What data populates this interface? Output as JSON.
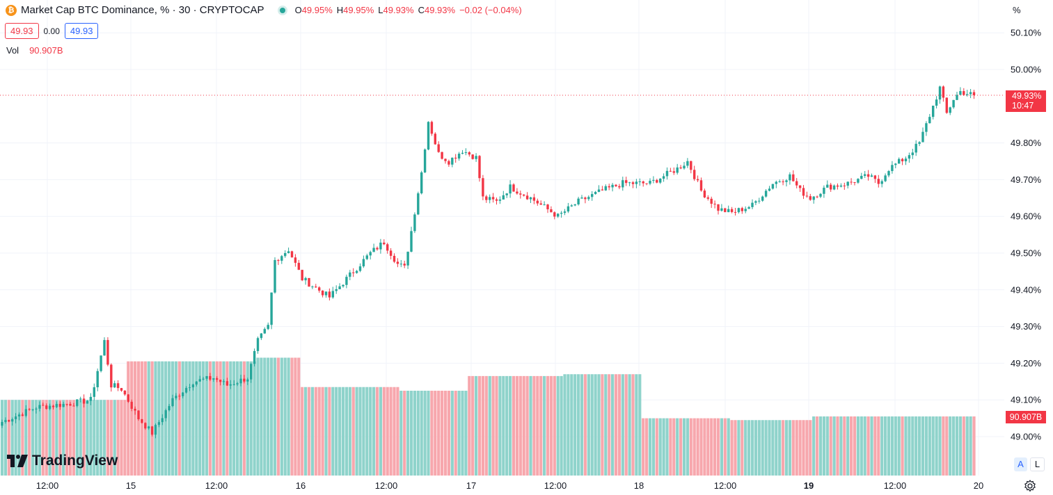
{
  "legend": {
    "icon": "bitcoin-icon",
    "title": "Market Cap BTC Dominance, % · 30 · CRYPTOCAP",
    "o_label": "O",
    "o_value": "49.95%",
    "h_label": "H",
    "h_value": "49.95%",
    "l_label": "L",
    "l_value": "49.93%",
    "c_label": "C",
    "c_value": "49.93%",
    "change": "−0.02 (−0.04%)"
  },
  "price_boxes": {
    "bid": "49.93",
    "spread": "0.00",
    "ask": "49.93"
  },
  "volume": {
    "label": "Vol",
    "value": "90.907B"
  },
  "scale_unit": "%",
  "last_price": {
    "value": "49.93%",
    "countdown": "10:47"
  },
  "volume_tag": "90.907B",
  "branding": {
    "logo_text": "TradingView"
  },
  "scale_buttons": {
    "auto": "A",
    "log": "L"
  },
  "colors": {
    "up": "#26a69a",
    "down": "#f23645",
    "up_vol": "#8fd3cb",
    "down_vol": "#f7a7ad",
    "grid": "#f0f3fa"
  },
  "chart_data": {
    "type": "candlestick",
    "title": "Market Cap BTC Dominance, % · 30 · CRYPTOCAP",
    "interval": "30",
    "ylim": [
      48.97,
      50.17
    ],
    "y_ticks": [
      "50.10%",
      "50.00%",
      "49.80%",
      "49.70%",
      "49.60%",
      "49.50%",
      "49.40%",
      "49.30%",
      "49.20%",
      "49.10%",
      "49.00%"
    ],
    "x_ticks": [
      "12:00",
      "15",
      "12:00",
      "16",
      "12:00",
      "17",
      "12:00",
      "18",
      "12:00",
      "19",
      "12:00",
      "20"
    ],
    "series_keypoints": [
      [
        0,
        49.04
      ],
      [
        10,
        49.08
      ],
      [
        20,
        49.09
      ],
      [
        26,
        49.1
      ],
      [
        30,
        49.26
      ],
      [
        32,
        49.14
      ],
      [
        35,
        49.13
      ],
      [
        40,
        49.05
      ],
      [
        44,
        49.01
      ],
      [
        50,
        49.1
      ],
      [
        56,
        49.15
      ],
      [
        62,
        49.16
      ],
      [
        66,
        49.14
      ],
      [
        72,
        49.16
      ],
      [
        75,
        49.26
      ],
      [
        78,
        49.3
      ],
      [
        80,
        49.48
      ],
      [
        84,
        49.51
      ],
      [
        88,
        49.43
      ],
      [
        96,
        49.38
      ],
      [
        102,
        49.44
      ],
      [
        108,
        49.5
      ],
      [
        112,
        49.53
      ],
      [
        116,
        49.47
      ],
      [
        118,
        49.46
      ],
      [
        120,
        49.56
      ],
      [
        123,
        49.72
      ],
      [
        125,
        49.86
      ],
      [
        128,
        49.77
      ],
      [
        131,
        49.75
      ],
      [
        135,
        49.78
      ],
      [
        139,
        49.76
      ],
      [
        141,
        49.65
      ],
      [
        145,
        49.64
      ],
      [
        149,
        49.68
      ],
      [
        155,
        49.65
      ],
      [
        163,
        49.6
      ],
      [
        169,
        49.64
      ],
      [
        176,
        49.67
      ],
      [
        182,
        49.69
      ],
      [
        190,
        49.69
      ],
      [
        198,
        49.73
      ],
      [
        201,
        49.75
      ],
      [
        205,
        49.67
      ],
      [
        210,
        49.62
      ],
      [
        214,
        49.61
      ],
      [
        220,
        49.63
      ],
      [
        226,
        49.69
      ],
      [
        231,
        49.71
      ],
      [
        234,
        49.67
      ],
      [
        237,
        49.65
      ],
      [
        242,
        49.68
      ],
      [
        248,
        49.69
      ],
      [
        254,
        49.71
      ],
      [
        257,
        49.69
      ],
      [
        260,
        49.73
      ],
      [
        265,
        49.76
      ],
      [
        269,
        49.8
      ],
      [
        273,
        49.9
      ],
      [
        275,
        49.95
      ],
      [
        277,
        49.88
      ],
      [
        279,
        49.92
      ],
      [
        281,
        49.94
      ],
      [
        285,
        49.93
      ]
    ],
    "volume_levels": [
      [
        0,
        49.1
      ],
      [
        37,
        49.205
      ],
      [
        75,
        49.215
      ],
      [
        88,
        49.135
      ],
      [
        117,
        49.125
      ],
      [
        137,
        49.165
      ],
      [
        165,
        49.17
      ],
      [
        188,
        49.05
      ],
      [
        214,
        49.045
      ],
      [
        238,
        49.055
      ],
      [
        285,
        49.055
      ]
    ],
    "last_close": 49.93
  }
}
